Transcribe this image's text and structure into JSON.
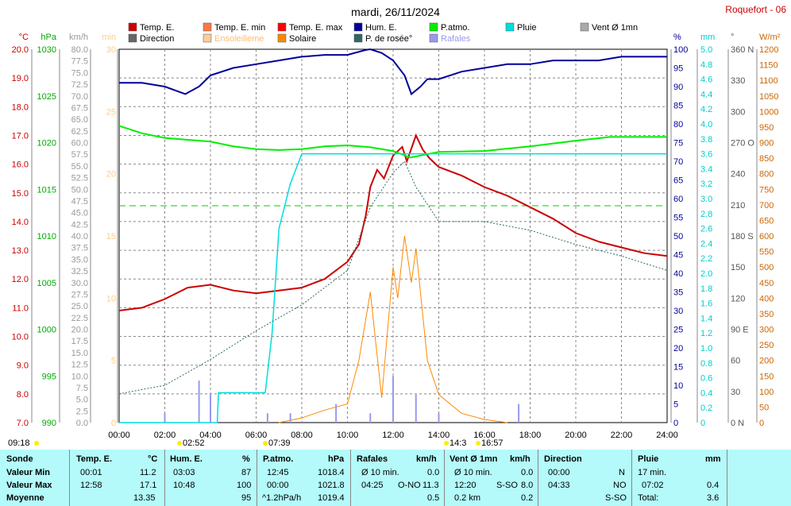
{
  "title": "mardi, 26/11/2024",
  "station": "Roquefort - 06",
  "legend": [
    {
      "label": "Temp. E.",
      "color": "#cc0000"
    },
    {
      "label": "Temp. E. min",
      "color": "#ff7744"
    },
    {
      "label": "Temp. E. max",
      "color": "#ff0000"
    },
    {
      "label": "Hum. E.",
      "color": "#000099"
    },
    {
      "label": "P.atmo.",
      "color": "#00ee00"
    },
    {
      "label": "Pluie",
      "color": "#00dddd"
    },
    {
      "label": "Vent Ø 1mn",
      "color": "#aaaaaa"
    },
    {
      "label": "Direction",
      "color": "#666666"
    },
    {
      "label": "Ensoleilleme",
      "color": "#ffcc99"
    },
    {
      "label": "Solaire",
      "color": "#ff8800"
    },
    {
      "label": "P. de rosée°",
      "color": "#336666"
    },
    {
      "label": "Rafales",
      "color": "#9999ee"
    }
  ],
  "axes": {
    "temp": {
      "unit": "°C",
      "ticks": [
        "20.0",
        "19.0",
        "18.0",
        "17.0",
        "16.0",
        "15.0",
        "14.0",
        "13.0",
        "12.0",
        "11.0",
        "10.0",
        "9.0",
        "8.0",
        "7.0"
      ],
      "color": "#cc0000"
    },
    "press": {
      "unit": "hPa",
      "ticks": [
        "1030",
        "1025",
        "1020",
        "1015",
        "1010",
        "1005",
        "1000",
        "995",
        "990"
      ],
      "color": "#00aa00"
    },
    "wind": {
      "unit": "km/h",
      "ticks": [
        "80.0",
        "77.5",
        "75.0",
        "72.5",
        "70.0",
        "67.5",
        "65.0",
        "62.5",
        "60.0",
        "57.5",
        "55.0",
        "52.5",
        "50.0",
        "47.5",
        "45.0",
        "42.5",
        "40.0",
        "37.5",
        "35.0",
        "32.5",
        "30.0",
        "27.5",
        "25.0",
        "22.5",
        "20.0",
        "17.5",
        "15.0",
        "12.5",
        "10.0",
        "7.5",
        "5.0",
        "2.5",
        "0.0"
      ],
      "color": "#999999"
    },
    "min": {
      "unit": "min",
      "ticks": [
        "30",
        "25",
        "20",
        "15",
        "10",
        "5",
        "0"
      ],
      "color": "#ffcc88"
    },
    "hum": {
      "unit": "%",
      "ticks": [
        "100",
        "95",
        "90",
        "85",
        "80",
        "75",
        "70",
        "65",
        "60",
        "55",
        "50",
        "45",
        "40",
        "35",
        "30",
        "25",
        "20",
        "15",
        "10",
        "5",
        "0"
      ],
      "color": "#000099"
    },
    "rain": {
      "unit": "mm",
      "ticks": [
        "5.0",
        "4.8",
        "4.6",
        "4.4",
        "4.2",
        "4.0",
        "3.8",
        "3.6",
        "3.4",
        "3.2",
        "3.0",
        "2.8",
        "2.6",
        "2.4",
        "2.2",
        "2.0",
        "1.8",
        "1.6",
        "1.4",
        "1.2",
        "1.0",
        "0.8",
        "0.6",
        "0.4",
        "0.2",
        "0"
      ],
      "color": "#00cccc"
    },
    "dir": {
      "unit": "°",
      "ticks": [
        "360 N",
        "330",
        "300",
        "270 O",
        "240",
        "210",
        "180 S",
        "150",
        "120",
        "90  E",
        "60",
        "30",
        "0   N"
      ],
      "color": "#555555"
    },
    "solar": {
      "unit": "W/m²",
      "ticks": [
        "1200",
        "1150",
        "1100",
        "1050",
        "1000",
        "950",
        "900",
        "850",
        "800",
        "750",
        "700",
        "650",
        "600",
        "550",
        "500",
        "450",
        "400",
        "350",
        "300",
        "250",
        "200",
        "150",
        "100",
        "50",
        "0"
      ],
      "color": "#cc6600"
    },
    "time": [
      "00:00",
      "02:00",
      "04:00",
      "06:00",
      "08:00",
      "10:00",
      "12:00",
      "14:00",
      "16:00",
      "18:00",
      "20:00",
      "22:00",
      "24:00"
    ]
  },
  "sun_markers": [
    "09:18",
    "02:52",
    "07:39",
    "14:3",
    "16:57"
  ],
  "chart_data": {
    "type": "line",
    "title": "mardi, 26/11/2024",
    "x_unit": "hours",
    "series": [
      {
        "name": "Temp. E.",
        "axis": "°C",
        "points": [
          [
            0,
            10.9
          ],
          [
            1,
            11.0
          ],
          [
            2,
            11.3
          ],
          [
            3,
            11.7
          ],
          [
            4,
            11.8
          ],
          [
            5,
            11.6
          ],
          [
            6,
            11.5
          ],
          [
            7,
            11.6
          ],
          [
            8,
            11.7
          ],
          [
            9,
            12.0
          ],
          [
            10,
            12.6
          ],
          [
            10.5,
            13.2
          ],
          [
            10.8,
            14.2
          ],
          [
            11,
            15.2
          ],
          [
            11.3,
            15.8
          ],
          [
            11.6,
            15.5
          ],
          [
            12,
            16.3
          ],
          [
            12.4,
            16.6
          ],
          [
            12.6,
            16.1
          ],
          [
            13,
            17.0
          ],
          [
            13.3,
            16.5
          ],
          [
            13.6,
            16.2
          ],
          [
            14,
            15.9
          ],
          [
            15,
            15.6
          ],
          [
            16,
            15.2
          ],
          [
            17,
            14.9
          ],
          [
            18,
            14.5
          ],
          [
            19,
            14.1
          ],
          [
            20,
            13.6
          ],
          [
            21,
            13.3
          ],
          [
            22,
            13.1
          ],
          [
            23,
            12.9
          ],
          [
            24,
            12.8
          ]
        ]
      },
      {
        "name": "Hum. E.",
        "axis": "%",
        "points": [
          [
            0,
            91
          ],
          [
            1,
            91
          ],
          [
            2,
            90
          ],
          [
            2.9,
            88
          ],
          [
            3.5,
            90
          ],
          [
            4,
            93
          ],
          [
            5,
            95
          ],
          [
            6,
            96
          ],
          [
            7,
            97
          ],
          [
            8,
            98
          ],
          [
            9,
            98.5
          ],
          [
            10,
            98.5
          ],
          [
            10.8,
            99.8
          ],
          [
            11,
            100
          ],
          [
            11.5,
            99
          ],
          [
            12,
            97
          ],
          [
            12.5,
            93
          ],
          [
            12.8,
            88
          ],
          [
            13.2,
            90
          ],
          [
            13.5,
            92
          ],
          [
            14,
            92
          ],
          [
            15,
            94
          ],
          [
            16,
            95
          ],
          [
            17,
            96
          ],
          [
            18,
            96
          ],
          [
            19,
            97
          ],
          [
            20,
            97
          ],
          [
            21,
            97
          ],
          [
            22,
            98
          ],
          [
            24,
            98
          ]
        ]
      },
      {
        "name": "P.atmo.",
        "axis": "hPa",
        "points": [
          [
            0,
            1021.8
          ],
          [
            1,
            1021.0
          ],
          [
            2,
            1020.5
          ],
          [
            3,
            1020.3
          ],
          [
            4,
            1020.1
          ],
          [
            5,
            1019.6
          ],
          [
            6,
            1019.3
          ],
          [
            7,
            1019.2
          ],
          [
            8,
            1019.3
          ],
          [
            9,
            1019.6
          ],
          [
            10,
            1019.7
          ],
          [
            11,
            1019.5
          ],
          [
            12,
            1019.1
          ],
          [
            12.75,
            1018.4
          ],
          [
            14,
            1019.0
          ],
          [
            16,
            1019.1
          ],
          [
            18,
            1019.6
          ],
          [
            20,
            1020.2
          ],
          [
            21.5,
            1020.6
          ],
          [
            24,
            1020.6
          ]
        ]
      },
      {
        "name": "Pluie",
        "axis": "mm",
        "points": [
          [
            0,
            0
          ],
          [
            4.3,
            0
          ],
          [
            4.35,
            0.4
          ],
          [
            6.4,
            0.4
          ],
          [
            6.7,
            1.2
          ],
          [
            7.0,
            2.6
          ],
          [
            7.5,
            3.2
          ],
          [
            8.0,
            3.6
          ],
          [
            12.0,
            3.6
          ],
          [
            24,
            3.6
          ]
        ]
      },
      {
        "name": "P. de rosée°",
        "axis": "°C",
        "points": [
          [
            0,
            8.0
          ],
          [
            2,
            8.3
          ],
          [
            4,
            9.2
          ],
          [
            6,
            10.2
          ],
          [
            8,
            11.1
          ],
          [
            10,
            12.3
          ],
          [
            11,
            14.5
          ],
          [
            12,
            15.7
          ],
          [
            12.5,
            16.1
          ],
          [
            13,
            15.2
          ],
          [
            14,
            14.0
          ],
          [
            16,
            14.0
          ],
          [
            18,
            13.7
          ],
          [
            20,
            13.2
          ],
          [
            22,
            12.8
          ],
          [
            24,
            12.3
          ]
        ]
      },
      {
        "name": "Solaire",
        "axis": "W/m²",
        "points": [
          [
            7,
            0
          ],
          [
            8,
            15
          ],
          [
            9,
            40
          ],
          [
            10,
            60
          ],
          [
            10.5,
            200
          ],
          [
            11,
            420
          ],
          [
            11.5,
            80
          ],
          [
            12,
            500
          ],
          [
            12.2,
            400
          ],
          [
            12.5,
            600
          ],
          [
            12.8,
            450
          ],
          [
            13,
            560
          ],
          [
            13.5,
            200
          ],
          [
            14,
            90
          ],
          [
            15,
            30
          ],
          [
            16,
            10
          ],
          [
            17,
            0
          ]
        ]
      },
      {
        "name": "Rafales",
        "axis": "km/h",
        "points": [
          [
            2,
            2
          ],
          [
            3.5,
            9
          ],
          [
            4,
            6
          ],
          [
            6.5,
            2
          ],
          [
            7.5,
            2
          ],
          [
            8,
            0
          ],
          [
            9.5,
            4
          ],
          [
            11,
            2
          ],
          [
            12,
            10
          ],
          [
            13,
            6
          ],
          [
            14,
            2
          ],
          [
            17.5,
            4
          ],
          [
            18,
            0
          ]
        ]
      }
    ]
  },
  "table": {
    "headers": {
      "sonde": "Sonde",
      "temp": "Temp. E.",
      "temp_u": "°C",
      "hum": "Hum. E.",
      "hum_u": "%",
      "press": "P.atmo.",
      "press_u": "hPa",
      "raf": "Rafales",
      "raf_u": "km/h",
      "vent": "Vent Ø 1mn",
      "vent_u": "km/h",
      "dir": "Direction",
      "pluie": "Pluie",
      "pluie_u": "mm"
    },
    "rows": {
      "min": "Valeur Min",
      "max": "Valeur Max",
      "moy": "Moyenne"
    },
    "temp": {
      "min_t": "00:01",
      "min_v": "11.2",
      "max_t": "12:58",
      "max_v": "17.1",
      "moy": "13.35"
    },
    "hum": {
      "min_t": "03:03",
      "min_v": "87",
      "max_t": "10:48",
      "max_v": "100",
      "moy": "95"
    },
    "press": {
      "min_t": "12:45",
      "min_v": "1018.4",
      "max_t": "00:00",
      "max_v": "1021.8",
      "trend": "^1.2hPa/h",
      "moy": "1019.4"
    },
    "raf": {
      "min_t": "Ø 10 min.",
      "min_v": "0.0",
      "max_t": "04:25",
      "max_d": "O-NO",
      "max_v": "11.3",
      "moy": "0.5"
    },
    "vent": {
      "min_t": "Ø 10 min.",
      "min_v": "0.0",
      "max_t": "12:20",
      "max_d": "S-SO",
      "max_v": "8.0",
      "dist": "0.2 km",
      "moy": "0.2"
    },
    "dir": {
      "min_t": "00:00",
      "min_v": "N",
      "max_t": "04:33",
      "max_v": "NO",
      "moy": "S-SO"
    },
    "pluie": {
      "min_t": "17 min.",
      "max_t": "07:02",
      "max_v": "0.4",
      "tot_l": "Total:",
      "tot_v": "3.6"
    }
  }
}
